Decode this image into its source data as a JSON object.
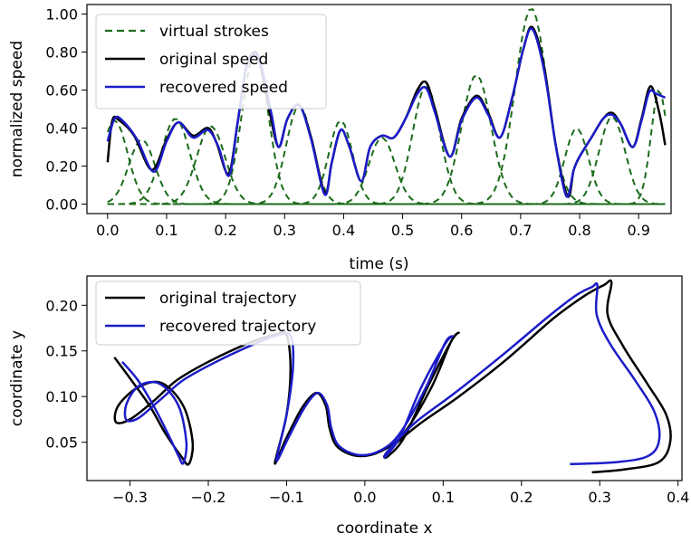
{
  "chart_data": [
    {
      "type": "line",
      "xlabel": "time (s)",
      "ylabel": "normalized speed",
      "xlim": [
        -0.035,
        0.955
      ],
      "ylim": [
        -0.05,
        1.05
      ],
      "xticks": [
        0.0,
        0.1,
        0.2,
        0.3,
        0.4,
        0.5,
        0.6,
        0.7,
        0.8,
        0.9
      ],
      "xtick_labels": [
        "0.0",
        "0.1",
        "0.2",
        "0.3",
        "0.4",
        "0.5",
        "0.6",
        "0.7",
        "0.8",
        "0.9"
      ],
      "yticks": [
        0.0,
        0.2,
        0.4,
        0.6,
        0.8,
        1.0
      ],
      "ytick_labels": [
        "0.00",
        "0.20",
        "0.40",
        "0.60",
        "0.80",
        "1.00"
      ],
      "legend_position": "top-left",
      "legend": [
        "virtual strokes",
        "original speed",
        "recovered speed"
      ],
      "colors": {
        "virtual": "#1a6b1a",
        "original": "#000000",
        "recovered": "#1c1cc8"
      },
      "strokes": [
        {
          "center": 0.012,
          "amplitude": 0.44,
          "width": 0.022
        },
        {
          "center": 0.058,
          "amplitude": 0.34,
          "width": 0.022
        },
        {
          "center": 0.115,
          "amplitude": 0.45,
          "width": 0.024
        },
        {
          "center": 0.175,
          "amplitude": 0.41,
          "width": 0.024
        },
        {
          "center": 0.25,
          "amplitude": 0.8,
          "width": 0.022
        },
        {
          "center": 0.325,
          "amplitude": 0.52,
          "width": 0.022
        },
        {
          "center": 0.395,
          "amplitude": 0.44,
          "width": 0.02
        },
        {
          "center": 0.465,
          "amplitude": 0.35,
          "width": 0.022
        },
        {
          "center": 0.54,
          "amplitude": 0.62,
          "width": 0.023
        },
        {
          "center": 0.625,
          "amplitude": 0.68,
          "width": 0.025
        },
        {
          "center": 0.718,
          "amplitude": 1.03,
          "width": 0.027
        },
        {
          "center": 0.795,
          "amplitude": 0.4,
          "width": 0.02
        },
        {
          "center": 0.855,
          "amplitude": 0.46,
          "width": 0.022
        },
        {
          "center": 0.935,
          "amplitude": 0.6,
          "width": 0.014
        }
      ],
      "original_speed": {
        "x": [
          0.0,
          0.008,
          0.02,
          0.045,
          0.075,
          0.1,
          0.12,
          0.145,
          0.17,
          0.185,
          0.205,
          0.22,
          0.235,
          0.25,
          0.26,
          0.275,
          0.29,
          0.305,
          0.325,
          0.345,
          0.368,
          0.38,
          0.395,
          0.41,
          0.43,
          0.445,
          0.465,
          0.485,
          0.505,
          0.525,
          0.54,
          0.555,
          0.58,
          0.6,
          0.625,
          0.645,
          0.665,
          0.685,
          0.705,
          0.72,
          0.74,
          0.76,
          0.78,
          0.79,
          0.8,
          0.82,
          0.84,
          0.855,
          0.87,
          0.89,
          0.905,
          0.92,
          0.935,
          0.945
        ],
        "y": [
          0.22,
          0.44,
          0.44,
          0.36,
          0.18,
          0.34,
          0.43,
          0.36,
          0.4,
          0.32,
          0.16,
          0.42,
          0.72,
          0.8,
          0.72,
          0.48,
          0.3,
          0.45,
          0.52,
          0.35,
          0.06,
          0.22,
          0.39,
          0.3,
          0.12,
          0.3,
          0.36,
          0.35,
          0.45,
          0.6,
          0.64,
          0.5,
          0.25,
          0.45,
          0.57,
          0.48,
          0.35,
          0.55,
          0.82,
          0.93,
          0.72,
          0.3,
          0.04,
          0.18,
          0.25,
          0.35,
          0.45,
          0.48,
          0.42,
          0.3,
          0.45,
          0.62,
          0.48,
          0.31
        ]
      },
      "recovered_speed": {
        "x": [
          0.0,
          0.012,
          0.025,
          0.05,
          0.078,
          0.1,
          0.12,
          0.145,
          0.17,
          0.188,
          0.206,
          0.22,
          0.235,
          0.25,
          0.262,
          0.278,
          0.29,
          0.305,
          0.325,
          0.345,
          0.368,
          0.38,
          0.395,
          0.41,
          0.43,
          0.445,
          0.465,
          0.485,
          0.505,
          0.525,
          0.54,
          0.555,
          0.58,
          0.6,
          0.625,
          0.645,
          0.665,
          0.685,
          0.705,
          0.72,
          0.74,
          0.76,
          0.778,
          0.79,
          0.8,
          0.82,
          0.84,
          0.855,
          0.87,
          0.89,
          0.905,
          0.918,
          0.93,
          0.945
        ],
        "y": [
          0.33,
          0.45,
          0.44,
          0.34,
          0.17,
          0.33,
          0.43,
          0.35,
          0.39,
          0.3,
          0.15,
          0.42,
          0.72,
          0.79,
          0.71,
          0.47,
          0.3,
          0.45,
          0.52,
          0.34,
          0.05,
          0.22,
          0.39,
          0.3,
          0.12,
          0.3,
          0.36,
          0.35,
          0.45,
          0.58,
          0.61,
          0.48,
          0.25,
          0.44,
          0.56,
          0.47,
          0.35,
          0.55,
          0.82,
          0.92,
          0.7,
          0.3,
          0.04,
          0.18,
          0.25,
          0.35,
          0.45,
          0.47,
          0.42,
          0.3,
          0.44,
          0.59,
          0.58,
          0.56
        ]
      }
    },
    {
      "type": "line",
      "xlabel": "coordinate x",
      "ylabel": "coordinate y",
      "xlim": [
        -0.355,
        0.405
      ],
      "ylim": [
        0.008,
        0.232
      ],
      "xticks": [
        -0.3,
        -0.2,
        -0.1,
        0.0,
        0.1,
        0.2,
        0.3,
        0.4
      ],
      "xtick_labels": [
        "−0.3",
        "−0.2",
        "−0.1",
        "0.0",
        "0.1",
        "0.2",
        "0.3",
        "0.4"
      ],
      "yticks": [
        0.05,
        0.1,
        0.15,
        0.2
      ],
      "ytick_labels": [
        "0.05",
        "0.10",
        "0.15",
        "0.20"
      ],
      "legend_position": "top-left",
      "legend": [
        "original trajectory",
        "recovered trajectory"
      ],
      "colors": {
        "original": "#000000",
        "recovered": "#1c1cc8"
      },
      "original_trajectory": {
        "x": [
          -0.32,
          -0.3,
          -0.275,
          -0.255,
          -0.235,
          -0.225,
          -0.22,
          -0.232,
          -0.26,
          -0.29,
          -0.315,
          -0.318,
          -0.3,
          -0.27,
          -0.24,
          -0.2,
          -0.15,
          -0.115,
          -0.1,
          -0.095,
          -0.1,
          -0.115,
          -0.1,
          -0.08,
          -0.062,
          -0.05,
          -0.045,
          -0.035,
          -0.01,
          0.02,
          0.05,
          0.085,
          0.11,
          0.12,
          0.11,
          0.08,
          0.05,
          0.03,
          0.025,
          0.035,
          0.07,
          0.12,
          0.18,
          0.24,
          0.28,
          0.305,
          0.315,
          0.31,
          0.33,
          0.36,
          0.385,
          0.39,
          0.375,
          0.33,
          0.29
        ],
        "y": [
          0.143,
          0.12,
          0.09,
          0.06,
          0.035,
          0.026,
          0.05,
          0.09,
          0.115,
          0.11,
          0.09,
          0.072,
          0.075,
          0.095,
          0.118,
          0.138,
          0.158,
          0.168,
          0.168,
          0.13,
          0.08,
          0.027,
          0.055,
          0.088,
          0.104,
          0.09,
          0.065,
          0.045,
          0.035,
          0.04,
          0.06,
          0.11,
          0.16,
          0.17,
          0.16,
          0.11,
          0.055,
          0.035,
          0.035,
          0.045,
          0.07,
          0.1,
          0.14,
          0.185,
          0.21,
          0.222,
          0.225,
          0.19,
          0.155,
          0.115,
          0.08,
          0.05,
          0.028,
          0.02,
          0.017
        ]
      },
      "recovered_trajectory": {
        "x": [
          -0.31,
          -0.29,
          -0.27,
          -0.252,
          -0.238,
          -0.232,
          -0.228,
          -0.238,
          -0.262,
          -0.288,
          -0.304,
          -0.305,
          -0.29,
          -0.262,
          -0.232,
          -0.19,
          -0.14,
          -0.108,
          -0.094,
          -0.092,
          -0.1,
          -0.113,
          -0.097,
          -0.077,
          -0.06,
          -0.048,
          -0.043,
          -0.033,
          -0.008,
          0.02,
          0.045,
          0.078,
          0.102,
          0.112,
          0.102,
          0.072,
          0.045,
          0.028,
          0.025,
          0.035,
          0.065,
          0.115,
          0.175,
          0.235,
          0.27,
          0.29,
          0.297,
          0.296,
          0.313,
          0.345,
          0.37,
          0.376,
          0.362,
          0.32,
          0.262
        ],
        "y": [
          0.138,
          0.118,
          0.09,
          0.06,
          0.035,
          0.027,
          0.05,
          0.09,
          0.114,
          0.112,
          0.093,
          0.075,
          0.076,
          0.096,
          0.118,
          0.138,
          0.158,
          0.168,
          0.165,
          0.13,
          0.08,
          0.03,
          0.056,
          0.088,
          0.104,
          0.09,
          0.066,
          0.046,
          0.036,
          0.041,
          0.06,
          0.11,
          0.158,
          0.166,
          0.157,
          0.11,
          0.056,
          0.036,
          0.035,
          0.046,
          0.072,
          0.104,
          0.145,
          0.188,
          0.211,
          0.22,
          0.222,
          0.19,
          0.158,
          0.118,
          0.083,
          0.053,
          0.035,
          0.028,
          0.026
        ]
      }
    }
  ]
}
